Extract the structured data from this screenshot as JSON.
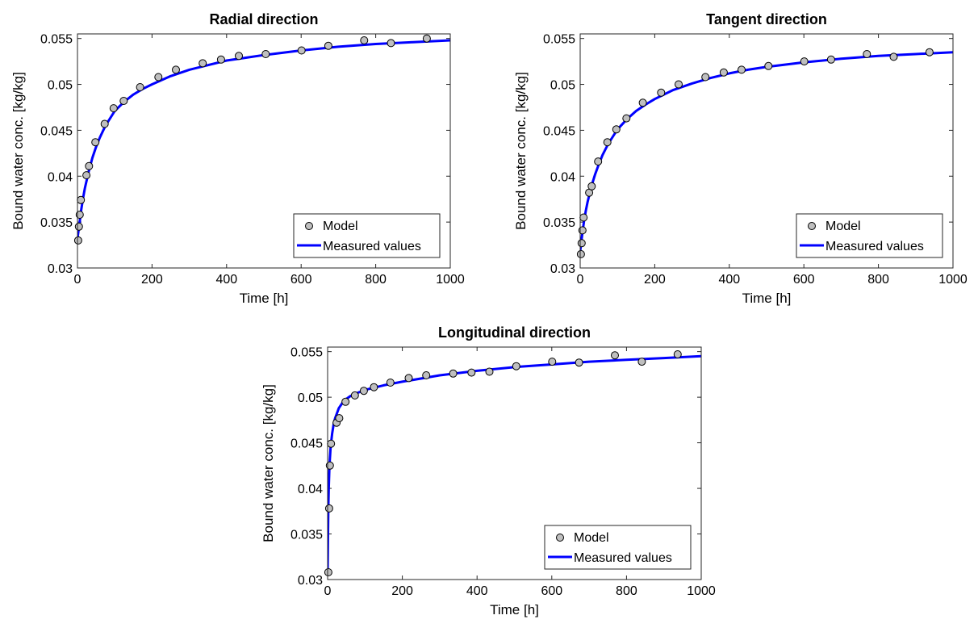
{
  "chart_data": [
    {
      "type": "scatter",
      "title": "Radial direction",
      "xlabel": "Time [h]",
      "ylabel": "Bound water conc. [kg/kg]",
      "xlim": [
        0,
        1000
      ],
      "ylim": [
        0.03,
        0.0555
      ],
      "xticks": [
        "0",
        "200",
        "400",
        "600",
        "800",
        "1000"
      ],
      "yticks": [
        "0.03",
        "0.035",
        "0.04",
        "0.045",
        "0.05",
        "0.055"
      ],
      "grid": false,
      "legend_position": "bottom-right",
      "colors": {
        "model_marker": "#bfbfbf",
        "curve": "#0000ff"
      },
      "series": [
        {
          "name": "Model",
          "kind": "markers",
          "x": [
            2,
            4,
            6,
            9,
            24,
            31,
            48,
            73,
            97,
            124,
            168,
            217,
            264,
            336,
            385,
            433,
            505,
            601,
            673,
            769,
            841,
            937
          ],
          "y": [
            0.033,
            0.0345,
            0.0358,
            0.0374,
            0.0401,
            0.0411,
            0.0437,
            0.0457,
            0.0474,
            0.0482,
            0.0497,
            0.0508,
            0.0516,
            0.0523,
            0.0527,
            0.0531,
            0.0533,
            0.0537,
            0.0542,
            0.0548,
            0.0545,
            0.055
          ]
        },
        {
          "name": "Measured values",
          "kind": "line",
          "x": [
            0,
            2,
            5,
            10,
            15,
            20,
            30,
            40,
            50,
            60,
            75,
            100,
            125,
            150,
            175,
            200,
            250,
            300,
            350,
            400,
            450,
            500,
            600,
            700,
            800,
            900,
            1000
          ],
          "y": [
            0.0332,
            0.0338,
            0.0347,
            0.0363,
            0.0376,
            0.0387,
            0.0405,
            0.042,
            0.0432,
            0.0442,
            0.0455,
            0.0471,
            0.0481,
            0.0489,
            0.0495,
            0.05,
            0.0509,
            0.0516,
            0.0521,
            0.0526,
            0.0529,
            0.0532,
            0.0537,
            0.0541,
            0.0544,
            0.0546,
            0.0548
          ]
        }
      ]
    },
    {
      "type": "scatter",
      "title": "Tangent direction",
      "xlabel": "Time [h]",
      "ylabel": "Bound water conc. [kg/kg]",
      "xlim": [
        0,
        1000
      ],
      "ylim": [
        0.03,
        0.0555
      ],
      "xticks": [
        "0",
        "200",
        "400",
        "600",
        "800",
        "1000"
      ],
      "yticks": [
        "0.03",
        "0.035",
        "0.04",
        "0.045",
        "0.05",
        "0.055"
      ],
      "grid": false,
      "legend_position": "bottom-right",
      "colors": {
        "model_marker": "#bfbfbf",
        "curve": "#0000ff"
      },
      "series": [
        {
          "name": "Model",
          "kind": "markers",
          "x": [
            2,
            4,
            6,
            9,
            24,
            31,
            48,
            73,
            97,
            124,
            168,
            217,
            264,
            336,
            385,
            433,
            505,
            601,
            673,
            769,
            841,
            937
          ],
          "y": [
            0.0315,
            0.0327,
            0.0341,
            0.0355,
            0.0382,
            0.0389,
            0.0416,
            0.0437,
            0.0451,
            0.0463,
            0.048,
            0.0491,
            0.05,
            0.0508,
            0.0513,
            0.0516,
            0.052,
            0.0525,
            0.0527,
            0.0533,
            0.053,
            0.0535
          ]
        },
        {
          "name": "Measured values",
          "kind": "line",
          "x": [
            0,
            2,
            5,
            10,
            15,
            20,
            30,
            40,
            50,
            60,
            75,
            100,
            125,
            150,
            175,
            200,
            250,
            300,
            350,
            400,
            450,
            500,
            600,
            700,
            800,
            900,
            1000
          ],
          "y": [
            0.0318,
            0.0325,
            0.0335,
            0.035,
            0.0362,
            0.0372,
            0.0389,
            0.0402,
            0.0413,
            0.0423,
            0.0435,
            0.0451,
            0.0462,
            0.0471,
            0.0478,
            0.0484,
            0.0494,
            0.0501,
            0.0507,
            0.0512,
            0.0516,
            0.0519,
            0.0524,
            0.0528,
            0.0531,
            0.0533,
            0.0535
          ]
        }
      ]
    },
    {
      "type": "scatter",
      "title": "Longitudinal direction",
      "xlabel": "Time [h]",
      "ylabel": "Bound water conc. [kg/kg]",
      "xlim": [
        0,
        1000
      ],
      "ylim": [
        0.03,
        0.0555
      ],
      "xticks": [
        "0",
        "200",
        "400",
        "600",
        "800",
        "1000"
      ],
      "yticks": [
        "0.03",
        "0.035",
        "0.04",
        "0.045",
        "0.05",
        "0.055"
      ],
      "grid": false,
      "legend_position": "bottom-right",
      "colors": {
        "model_marker": "#bfbfbf",
        "curve": "#0000ff"
      },
      "series": [
        {
          "name": "Model",
          "kind": "markers",
          "x": [
            2,
            4,
            6,
            9,
            24,
            31,
            48,
            73,
            97,
            124,
            168,
            217,
            264,
            336,
            385,
            433,
            505,
            601,
            673,
            769,
            841,
            937
          ],
          "y": [
            0.0308,
            0.0378,
            0.0425,
            0.0449,
            0.0472,
            0.0477,
            0.0495,
            0.0502,
            0.0507,
            0.0511,
            0.0516,
            0.0521,
            0.0524,
            0.0526,
            0.0527,
            0.0528,
            0.0534,
            0.0539,
            0.0538,
            0.0546,
            0.0539,
            0.0547
          ]
        },
        {
          "name": "Measured values",
          "kind": "line",
          "x": [
            0,
            1,
            2,
            3,
            5,
            8,
            12,
            16,
            20,
            30,
            40,
            50,
            60,
            75,
            100,
            150,
            200,
            300,
            400,
            500,
            600,
            700,
            800,
            900,
            1000
          ],
          "y": [
            0.0305,
            0.035,
            0.038,
            0.04,
            0.0425,
            0.0445,
            0.046,
            0.047,
            0.0477,
            0.0488,
            0.0494,
            0.0498,
            0.0501,
            0.0504,
            0.0508,
            0.0513,
            0.0517,
            0.0524,
            0.0529,
            0.0533,
            0.0536,
            0.0539,
            0.0541,
            0.0543,
            0.0545
          ]
        }
      ]
    }
  ]
}
